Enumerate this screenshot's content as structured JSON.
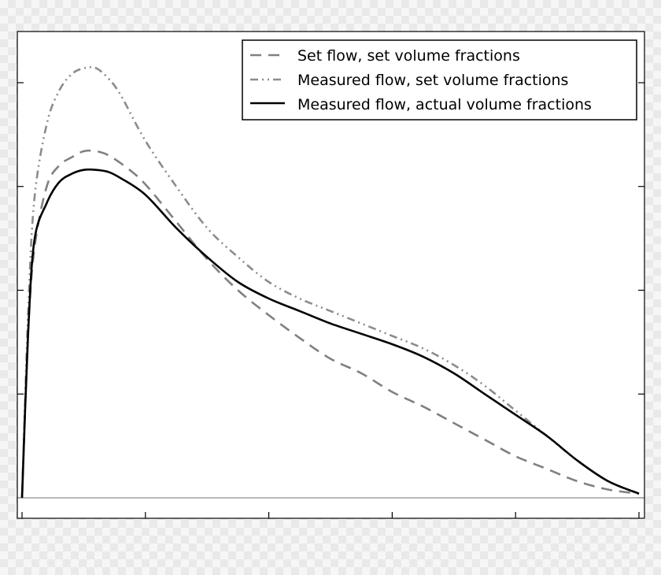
{
  "chart_data": {
    "type": "line",
    "title": "",
    "xlabel": "",
    "ylabel": "",
    "xlim": [
      0,
      1
    ],
    "ylim": [
      -0.045,
      1.12
    ],
    "grid": false,
    "legend_position": "top-right",
    "x_ticks": [
      0,
      0.2,
      0.4,
      0.6,
      0.8,
      1.0
    ],
    "y_ticks": [
      0,
      0.25,
      0.5,
      0.75,
      1.0
    ],
    "baseline_y": 0,
    "series": [
      {
        "name": "Set flow, set volume fractions",
        "style": "dashed",
        "color": "#808080",
        "x": [
          0,
          0.01,
          0.02,
          0.04,
          0.06,
          0.08,
          0.1,
          0.12,
          0.14,
          0.17,
          0.2,
          0.25,
          0.3,
          0.35,
          0.4,
          0.45,
          0.5,
          0.55,
          0.6,
          0.65,
          0.7,
          0.75,
          0.8,
          0.85,
          0.9,
          0.95,
          1.0
        ],
        "values": [
          0,
          0.4,
          0.6,
          0.75,
          0.8,
          0.82,
          0.835,
          0.835,
          0.825,
          0.795,
          0.755,
          0.665,
          0.575,
          0.5,
          0.44,
          0.385,
          0.335,
          0.3,
          0.255,
          0.22,
          0.18,
          0.14,
          0.1,
          0.07,
          0.04,
          0.02,
          0.01
        ]
      },
      {
        "name": "Measured flow, set volume fractions",
        "style": "dashdot",
        "color": "#8c8c8c",
        "x": [
          0,
          0.01,
          0.02,
          0.04,
          0.06,
          0.08,
          0.1,
          0.12,
          0.14,
          0.16,
          0.2,
          0.25,
          0.3,
          0.35,
          0.4,
          0.45,
          0.5,
          0.55,
          0.6,
          0.65,
          0.7,
          0.75,
          0.8,
          0.85,
          0.9,
          0.95,
          1.0
        ],
        "values": [
          0,
          0.45,
          0.72,
          0.9,
          0.98,
          1.02,
          1.035,
          1.035,
          1.01,
          0.97,
          0.86,
          0.75,
          0.65,
          0.58,
          0.52,
          0.48,
          0.45,
          0.42,
          0.39,
          0.36,
          0.32,
          0.27,
          0.21,
          0.15,
          0.09,
          0.04,
          0.01
        ]
      },
      {
        "name": "Measured flow, actual volume fractions",
        "style": "solid",
        "color": "#000000",
        "x": [
          0,
          0.01,
          0.02,
          0.04,
          0.06,
          0.08,
          0.1,
          0.12,
          0.14,
          0.16,
          0.2,
          0.25,
          0.3,
          0.35,
          0.4,
          0.45,
          0.5,
          0.55,
          0.6,
          0.65,
          0.7,
          0.75,
          0.8,
          0.85,
          0.9,
          0.95,
          1.0
        ],
        "values": [
          0,
          0.4,
          0.62,
          0.71,
          0.76,
          0.78,
          0.79,
          0.79,
          0.785,
          0.77,
          0.73,
          0.65,
          0.58,
          0.52,
          0.48,
          0.45,
          0.42,
          0.395,
          0.37,
          0.34,
          0.3,
          0.25,
          0.2,
          0.15,
          0.09,
          0.04,
          0.01
        ]
      }
    ]
  }
}
